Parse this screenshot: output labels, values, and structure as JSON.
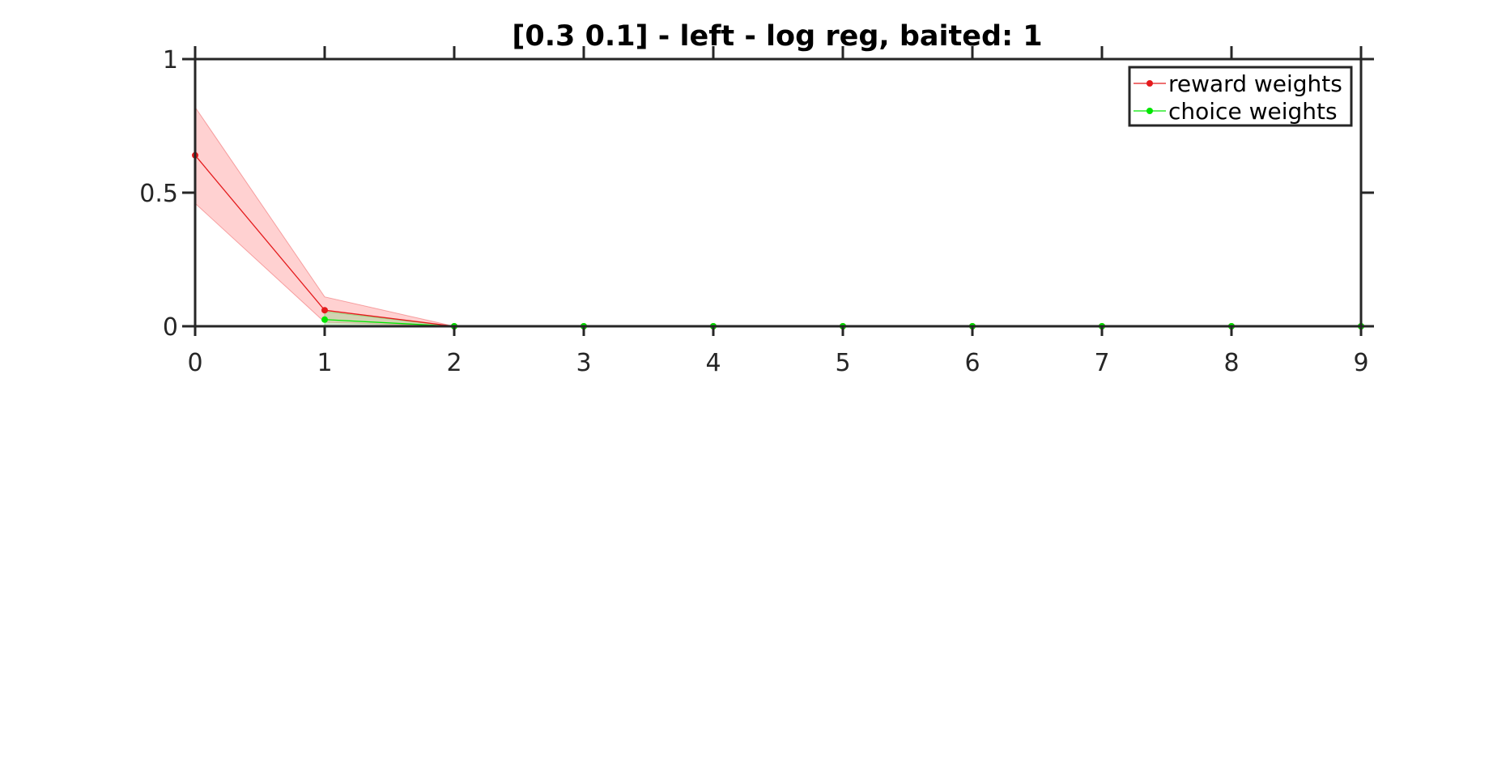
{
  "chart_data": {
    "type": "line",
    "title": "[0.3 0.1] - left - log reg, baited: 1",
    "xlabel": "",
    "ylabel": "",
    "xlim": [
      0,
      9
    ],
    "ylim": [
      0,
      1
    ],
    "x": [
      0,
      1,
      2,
      3,
      4,
      5,
      6,
      7,
      8,
      9
    ],
    "x_ticks": [
      "0",
      "1",
      "2",
      "3",
      "4",
      "5",
      "6",
      "7",
      "8",
      "9"
    ],
    "y_ticks": [
      {
        "value": 0,
        "label": "0"
      },
      {
        "value": 0.5,
        "label": "0.5"
      },
      {
        "value": 1,
        "label": "1"
      }
    ],
    "grid": false,
    "legend_position": "top-right",
    "series": [
      {
        "name": "reward weights",
        "color": "#e41a1c",
        "band_color": "#ff9a9a",
        "values": [
          0.64,
          0.06,
          0,
          0,
          0,
          0,
          0,
          0,
          0,
          0
        ],
        "upper": [
          0.82,
          0.11,
          0,
          0,
          0,
          0,
          0,
          0,
          0,
          0
        ],
        "lower": [
          0.46,
          0.015,
          0,
          0,
          0,
          0,
          0,
          0,
          0,
          0
        ]
      },
      {
        "name": "choice weights",
        "color": "#00e600",
        "band_color": "#9bd48e",
        "values": [
          null,
          0.025,
          0,
          0,
          0,
          0,
          0,
          0,
          0,
          0
        ],
        "upper": [
          null,
          0.055,
          0,
          0,
          0,
          0,
          0,
          0,
          0,
          0
        ],
        "lower": [
          null,
          0.0,
          0,
          0,
          0,
          0,
          0,
          0,
          0,
          0
        ]
      }
    ]
  }
}
